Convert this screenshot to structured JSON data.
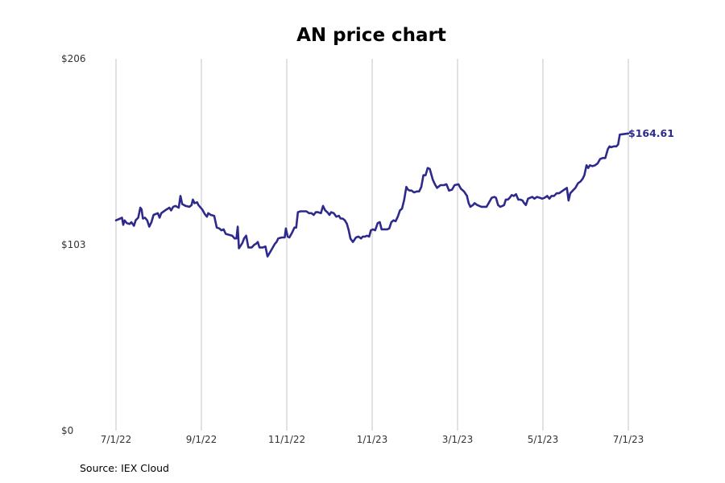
{
  "chart_data": {
    "type": "line",
    "title": "AN price chart",
    "xlabel": "",
    "ylabel": "",
    "ylim": [
      0,
      206
    ],
    "y_ticks": [
      {
        "value": 0,
        "label": "$0"
      },
      {
        "value": 103,
        "label": "$103"
      },
      {
        "value": 206,
        "label": "$206"
      }
    ],
    "x_ticks": [
      "7/1/22",
      "9/1/22",
      "11/1/22",
      "1/1/23",
      "3/1/23",
      "5/1/23",
      "7/1/23"
    ],
    "x_domain": [
      0,
      12
    ],
    "grid": "vertical",
    "color": "#2e2a8c",
    "last_value_label": "$164.61",
    "series": [
      {
        "name": "AN",
        "points": [
          [
            0.0,
            116.5
          ],
          [
            0.1,
            117.5
          ],
          [
            0.14,
            118.0
          ],
          [
            0.17,
            114.0
          ],
          [
            0.2,
            116.5
          ],
          [
            0.25,
            115.0
          ],
          [
            0.32,
            114.5
          ],
          [
            0.36,
            115.5
          ],
          [
            0.42,
            113.5
          ],
          [
            0.46,
            116.5
          ],
          [
            0.52,
            118.0
          ],
          [
            0.57,
            123.5
          ],
          [
            0.6,
            122.5
          ],
          [
            0.63,
            117.5
          ],
          [
            0.68,
            118.0
          ],
          [
            0.73,
            116.5
          ],
          [
            0.78,
            113.0
          ],
          [
            0.83,
            115.5
          ],
          [
            0.88,
            119.5
          ],
          [
            0.98,
            120.5
          ],
          [
            1.02,
            118.0
          ],
          [
            1.06,
            120.5
          ],
          [
            1.15,
            122.0
          ],
          [
            1.25,
            123.5
          ],
          [
            1.29,
            122.0
          ],
          [
            1.34,
            124.0
          ],
          [
            1.39,
            124.5
          ],
          [
            1.47,
            123.5
          ],
          [
            1.51,
            130.0
          ],
          [
            1.55,
            125.5
          ],
          [
            1.63,
            124.5
          ],
          [
            1.72,
            124.0
          ],
          [
            1.77,
            125.0
          ],
          [
            1.8,
            128.0
          ],
          [
            1.84,
            126.0
          ],
          [
            1.9,
            126.5
          ],
          [
            1.93,
            125.0
          ],
          [
            2.02,
            122.5
          ],
          [
            2.08,
            120.0
          ],
          [
            2.13,
            118.5
          ],
          [
            2.16,
            120.5
          ],
          [
            2.22,
            119.5
          ],
          [
            2.3,
            119.0
          ],
          [
            2.36,
            112.5
          ],
          [
            2.42,
            112.0
          ],
          [
            2.47,
            111.0
          ],
          [
            2.52,
            111.5
          ],
          [
            2.57,
            109.0
          ],
          [
            2.65,
            108.5
          ],
          [
            2.72,
            108.0
          ],
          [
            2.78,
            106.5
          ],
          [
            2.82,
            106.5
          ],
          [
            2.85,
            113.0
          ],
          [
            2.88,
            101.0
          ],
          [
            2.96,
            104.0
          ],
          [
            3.0,
            106.5
          ],
          [
            3.05,
            108.0
          ],
          [
            3.1,
            101.5
          ],
          [
            3.18,
            101.5
          ],
          [
            3.24,
            103.0
          ],
          [
            3.28,
            103.5
          ],
          [
            3.32,
            104.5
          ],
          [
            3.36,
            101.5
          ],
          [
            3.44,
            101.5
          ],
          [
            3.5,
            102.0
          ],
          [
            3.55,
            96.5
          ],
          [
            3.6,
            98.5
          ],
          [
            3.65,
            100.5
          ],
          [
            3.72,
            103.5
          ],
          [
            3.76,
            104.5
          ],
          [
            3.8,
            106.5
          ],
          [
            3.88,
            107.0
          ],
          [
            3.95,
            107.0
          ],
          [
            3.98,
            112.0
          ],
          [
            4.02,
            107.5
          ],
          [
            4.06,
            107.0
          ],
          [
            4.12,
            109.5
          ],
          [
            4.18,
            112.5
          ],
          [
            4.22,
            112.5
          ],
          [
            4.26,
            121.0
          ],
          [
            4.32,
            121.5
          ],
          [
            4.38,
            121.5
          ],
          [
            4.46,
            121.5
          ],
          [
            4.52,
            120.5
          ],
          [
            4.58,
            120.5
          ],
          [
            4.63,
            119.5
          ],
          [
            4.68,
            121.0
          ],
          [
            4.73,
            121.0
          ],
          [
            4.8,
            120.5
          ],
          [
            4.85,
            124.5
          ],
          [
            4.9,
            122.0
          ],
          [
            4.95,
            121.0
          ],
          [
            5.0,
            119.5
          ],
          [
            5.04,
            121.0
          ],
          [
            5.1,
            120.5
          ],
          [
            5.16,
            118.5
          ],
          [
            5.22,
            119.0
          ],
          [
            5.26,
            117.5
          ],
          [
            5.31,
            117.5
          ],
          [
            5.36,
            116.5
          ],
          [
            5.41,
            114.5
          ],
          [
            5.45,
            111.0
          ],
          [
            5.49,
            106.5
          ],
          [
            5.55,
            104.5
          ],
          [
            5.62,
            107.0
          ],
          [
            5.68,
            107.5
          ],
          [
            5.74,
            106.5
          ],
          [
            5.78,
            107.5
          ],
          [
            5.83,
            107.5
          ],
          [
            5.88,
            108.0
          ],
          [
            5.93,
            107.5
          ],
          [
            5.97,
            111.0
          ],
          [
            6.02,
            111.5
          ],
          [
            6.07,
            111.0
          ],
          [
            6.13,
            115.0
          ],
          [
            6.18,
            115.5
          ],
          [
            6.22,
            111.5
          ],
          [
            6.28,
            111.5
          ],
          [
            6.35,
            111.5
          ],
          [
            6.4,
            112.0
          ],
          [
            6.45,
            115.5
          ],
          [
            6.5,
            116.5
          ],
          [
            6.55,
            116.0
          ],
          [
            6.6,
            118.5
          ],
          [
            6.65,
            122.0
          ],
          [
            6.7,
            123.0
          ],
          [
            6.75,
            128.0
          ],
          [
            6.8,
            135.0
          ],
          [
            6.84,
            133.5
          ],
          [
            6.88,
            133.0
          ],
          [
            6.92,
            133.0
          ],
          [
            6.98,
            132.0
          ],
          [
            7.05,
            132.5
          ],
          [
            7.1,
            132.5
          ],
          [
            7.15,
            135.0
          ],
          [
            7.2,
            141.5
          ],
          [
            7.25,
            141.5
          ],
          [
            7.3,
            145.5
          ],
          [
            7.35,
            145.0
          ],
          [
            7.42,
            139.0
          ],
          [
            7.47,
            136.5
          ],
          [
            7.52,
            134.5
          ],
          [
            7.6,
            136.0
          ],
          [
            7.68,
            136.0
          ],
          [
            7.74,
            136.5
          ],
          [
            7.8,
            133.0
          ],
          [
            7.87,
            133.5
          ],
          [
            7.93,
            136.0
          ],
          [
            8.02,
            136.5
          ],
          [
            8.08,
            134.0
          ],
          [
            8.15,
            132.5
          ],
          [
            8.22,
            130.0
          ],
          [
            8.26,
            126.0
          ],
          [
            8.3,
            124.0
          ],
          [
            8.36,
            125.0
          ],
          [
            8.4,
            126.0
          ],
          [
            8.46,
            125.0
          ],
          [
            8.51,
            124.5
          ],
          [
            8.56,
            124.0
          ],
          [
            8.62,
            124.0
          ],
          [
            8.68,
            124.0
          ],
          [
            8.74,
            126.5
          ],
          [
            8.8,
            129.0
          ],
          [
            8.86,
            129.5
          ],
          [
            8.9,
            129.0
          ],
          [
            8.95,
            125.0
          ],
          [
            9.0,
            124.0
          ],
          [
            9.05,
            124.5
          ],
          [
            9.09,
            125.0
          ],
          [
            9.13,
            128.0
          ],
          [
            9.18,
            128.0
          ],
          [
            9.22,
            129.0
          ],
          [
            9.27,
            130.5
          ],
          [
            9.32,
            130.0
          ],
          [
            9.37,
            131.0
          ],
          [
            9.42,
            128.0
          ],
          [
            9.47,
            128.0
          ],
          [
            9.52,
            127.5
          ],
          [
            9.56,
            126.0
          ],
          [
            9.6,
            125.0
          ],
          [
            9.65,
            128.5
          ],
          [
            9.7,
            129.0
          ],
          [
            9.75,
            129.5
          ],
          [
            9.8,
            128.5
          ],
          [
            9.86,
            129.5
          ],
          [
            9.93,
            129.0
          ],
          [
            9.98,
            128.5
          ],
          [
            10.04,
            129.0
          ],
          [
            10.1,
            130.0
          ],
          [
            10.15,
            128.5
          ],
          [
            10.2,
            130.0
          ],
          [
            10.26,
            130.0
          ],
          [
            10.32,
            131.5
          ],
          [
            10.38,
            131.5
          ],
          [
            10.44,
            132.5
          ],
          [
            10.5,
            133.5
          ],
          [
            10.56,
            134.5
          ],
          [
            10.6,
            127.5
          ],
          [
            10.64,
            131.5
          ],
          [
            10.7,
            133.0
          ],
          [
            10.76,
            134.5
          ],
          [
            10.82,
            137.0
          ],
          [
            10.88,
            138.0
          ],
          [
            10.93,
            139.5
          ],
          [
            10.97,
            141.5
          ],
          [
            11.02,
            147.0
          ],
          [
            11.06,
            145.5
          ],
          [
            11.1,
            147.0
          ],
          [
            11.16,
            146.5
          ],
          [
            11.22,
            147.0
          ],
          [
            11.28,
            148.0
          ],
          [
            11.34,
            150.5
          ],
          [
            11.4,
            151.0
          ],
          [
            11.46,
            151.0
          ],
          [
            11.52,
            156.0
          ],
          [
            11.56,
            157.5
          ],
          [
            11.6,
            157.0
          ],
          [
            11.66,
            157.5
          ],
          [
            11.72,
            157.5
          ],
          [
            11.76,
            158.5
          ],
          [
            11.8,
            164.0
          ],
          [
            12.0,
            164.61
          ]
        ]
      }
    ]
  },
  "source_note": "Source: IEX Cloud"
}
